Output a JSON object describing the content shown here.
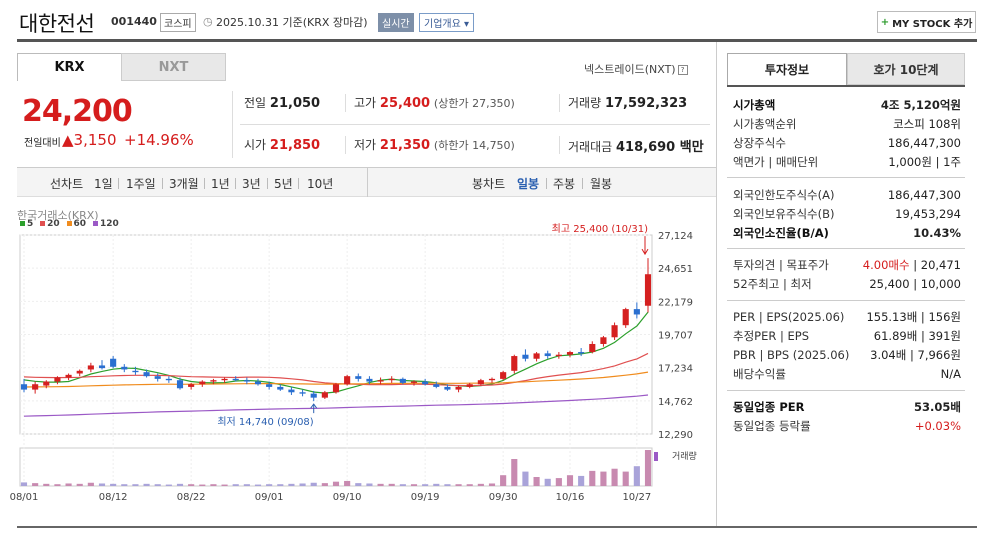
{
  "header": {
    "name": "대한전선",
    "code": "001440",
    "market": "코스피",
    "date": "2025.10.31 기준(KRX 장마감)",
    "realtime": "실시간",
    "overview": "기업개요",
    "mystock": "MY STOCK 추가"
  },
  "tabs": {
    "krx": "KRX",
    "nxt": "NXT",
    "nxt_link": "넥스트레이드(NXT)"
  },
  "price": {
    "current": "24,200",
    "change_label": "전일대비",
    "change": "3,150",
    "change_pct": "+14.96%"
  },
  "quote": {
    "prev_label": "전일",
    "prev": "21,050",
    "high_label": "고가",
    "high": "25,400",
    "upper_limit": "(상한가 27,350)",
    "volume_label": "거래량",
    "volume": "17,592,323",
    "open_label": "시가",
    "open": "21,850",
    "low_label": "저가",
    "low": "21,350",
    "lower_limit": "(하한가 14,750)",
    "amount_label": "거래대금",
    "amount": "418,690 백만"
  },
  "period_bar": {
    "line_chart": "선차트",
    "periods": [
      "1일",
      "1주일",
      "3개월",
      "1년",
      "3년",
      "5년",
      "10년"
    ],
    "candle_chart": "봉차트",
    "candles": [
      "일봉",
      "주봉",
      "월봉"
    ],
    "selected": "일봉"
  },
  "chart_data": {
    "type": "candlestick",
    "source": "한국거래소(KRX)",
    "legend": [
      "5",
      "20",
      "60",
      "120"
    ],
    "legend_colors": [
      "#2ca02c",
      "#e05050",
      "#f08c1e",
      "#9b59c6"
    ],
    "y_ticks": [
      "27,124",
      "24,651",
      "22,179",
      "19,707",
      "17,234",
      "14,762",
      "12,290"
    ],
    "ylim": [
      12290,
      27124
    ],
    "x_ticks": [
      "08/01",
      "08/12",
      "08/22",
      "09/01",
      "09/10",
      "09/19",
      "09/30",
      "10/16",
      "10/27"
    ],
    "max_label": "최고 25,400 (10/31)",
    "min_label": "최저 14,740 (09/08)",
    "volume_label": "거래량",
    "up_color": "#d52020",
    "down_color": "#2a6fd0",
    "candles": [
      [
        16000,
        16400,
        15400,
        15600
      ],
      [
        15600,
        16200,
        15300,
        16000
      ],
      [
        15900,
        16300,
        15700,
        16200
      ],
      [
        16200,
        16600,
        16000,
        16500
      ],
      [
        16500,
        16800,
        16300,
        16700
      ],
      [
        16800,
        17100,
        16600,
        17000
      ],
      [
        17100,
        17600,
        16900,
        17400
      ],
      [
        17400,
        17800,
        17100,
        17200
      ],
      [
        17900,
        18100,
        17200,
        17300
      ],
      [
        17300,
        17500,
        16900,
        17100
      ],
      [
        17000,
        17300,
        16700,
        16900
      ],
      [
        16900,
        17100,
        16500,
        16600
      ],
      [
        16600,
        16800,
        16200,
        16400
      ],
      [
        16400,
        16600,
        16100,
        16300
      ],
      [
        16300,
        16500,
        15600,
        15700
      ],
      [
        15800,
        16100,
        15600,
        16000
      ],
      [
        16000,
        16300,
        15800,
        16200
      ],
      [
        16200,
        16400,
        16000,
        16300
      ],
      [
        16300,
        16500,
        16100,
        16400
      ],
      [
        16400,
        16600,
        16200,
        16300
      ],
      [
        16300,
        16500,
        16000,
        16200
      ],
      [
        16200,
        16400,
        15900,
        16000
      ],
      [
        16000,
        16200,
        15600,
        15800
      ],
      [
        15800,
        16000,
        15500,
        15600
      ],
      [
        15600,
        15800,
        15200,
        15400
      ],
      [
        15400,
        15600,
        15100,
        15300
      ],
      [
        15300,
        15500,
        14740,
        15000
      ],
      [
        15000,
        15500,
        14900,
        15400
      ],
      [
        15400,
        16100,
        15300,
        16000
      ],
      [
        16000,
        16700,
        15900,
        16600
      ],
      [
        16600,
        16800,
        16200,
        16400
      ],
      [
        16400,
        16600,
        16000,
        16200
      ],
      [
        16200,
        16500,
        16000,
        16300
      ],
      [
        16300,
        16600,
        16100,
        16400
      ],
      [
        16400,
        16500,
        16000,
        16100
      ],
      [
        16100,
        16300,
        15900,
        16200
      ],
      [
        16200,
        16400,
        15900,
        16000
      ],
      [
        16000,
        16200,
        15700,
        15800
      ],
      [
        15800,
        16000,
        15500,
        15600
      ],
      [
        15600,
        15900,
        15400,
        15800
      ],
      [
        15800,
        16100,
        15700,
        16000
      ],
      [
        16000,
        16400,
        15900,
        16300
      ],
      [
        16300,
        16500,
        16100,
        16400
      ],
      [
        16400,
        17000,
        16300,
        16900
      ],
      [
        17000,
        18200,
        16800,
        18100
      ],
      [
        18200,
        18600,
        17700,
        17900
      ],
      [
        17900,
        18400,
        17700,
        18300
      ],
      [
        18300,
        18500,
        17900,
        18100
      ],
      [
        18100,
        18400,
        17900,
        18200
      ],
      [
        18200,
        18500,
        18000,
        18400
      ],
      [
        18400,
        18700,
        18100,
        18300
      ],
      [
        18400,
        19200,
        18300,
        19000
      ],
      [
        19000,
        19600,
        18800,
        19500
      ],
      [
        19500,
        20600,
        19300,
        20400
      ],
      [
        20400,
        21700,
        20200,
        21600
      ],
      [
        21600,
        22100,
        20900,
        21200
      ],
      [
        21850,
        25400,
        21350,
        24200
      ]
    ],
    "volumes": [
      0.1,
      0.08,
      0.06,
      0.05,
      0.07,
      0.06,
      0.09,
      0.07,
      0.06,
      0.05,
      0.05,
      0.06,
      0.05,
      0.04,
      0.06,
      0.05,
      0.04,
      0.05,
      0.04,
      0.05,
      0.05,
      0.04,
      0.05,
      0.05,
      0.06,
      0.07,
      0.09,
      0.08,
      0.12,
      0.14,
      0.08,
      0.07,
      0.06,
      0.06,
      0.05,
      0.05,
      0.05,
      0.06,
      0.05,
      0.05,
      0.05,
      0.06,
      0.07,
      0.3,
      0.75,
      0.4,
      0.25,
      0.2,
      0.22,
      0.3,
      0.28,
      0.42,
      0.4,
      0.48,
      0.4,
      0.55,
      1.0
    ]
  },
  "investment": {
    "tab1": "투자정보",
    "tab2": "호가 10단계",
    "rows1": [
      {
        "k": "시가총액",
        "v": "4조 5,120억원",
        "bold": true
      },
      {
        "k": "시가총액순위",
        "v": "코스피 108위"
      },
      {
        "k": "상장주식수",
        "v": "186,447,300"
      },
      {
        "k": "액면가 | 매매단위",
        "v": "1,000원 | 1주"
      }
    ],
    "rows2": [
      {
        "k": "외국인한도주식수(A)",
        "v": "186,447,300"
      },
      {
        "k": "외국인보유주식수(B)",
        "v": "19,453,294"
      },
      {
        "k": "외국인소진율(B/A)",
        "v": "10.43%",
        "bold": true
      }
    ],
    "rows3": [
      {
        "k": "투자의견 | 목표주가",
        "v": "4.00매수 | 20,471",
        "red": "4.00매수"
      },
      {
        "k": "52주최고 | 최저",
        "v": "25,400 | 10,000"
      }
    ],
    "rows4": [
      {
        "k": "PER | EPS(2025.06)",
        "v": "155.13배 | 156원"
      },
      {
        "k": "추정PER | EPS",
        "v": "61.89배 | 391원"
      },
      {
        "k": "PBR | BPS (2025.06)",
        "v": "3.04배 | 7,966원"
      },
      {
        "k": "배당수익률",
        "v": "N/A"
      }
    ],
    "rows5": [
      {
        "k": "동일업종 PER",
        "v": "53.05배",
        "bold": true
      },
      {
        "k": "동일업종 등락률",
        "v": "+0.03%",
        "red": "+0.03%"
      }
    ]
  }
}
